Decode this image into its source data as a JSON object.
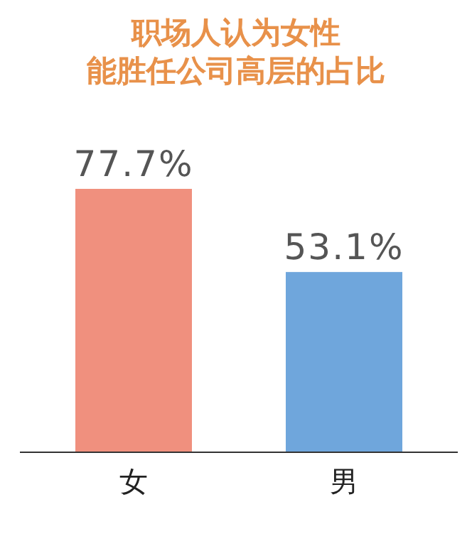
{
  "chart_data": {
    "type": "bar",
    "title": "职场人认为女性",
    "subtitle": "能胜任公司高层的占比",
    "categories": [
      "女",
      "男"
    ],
    "values": [
      77.7,
      53.1
    ],
    "colors": [
      "#f0907e",
      "#6fa6dc"
    ],
    "value_labels": [
      "77.7%",
      "53.1%"
    ]
  }
}
